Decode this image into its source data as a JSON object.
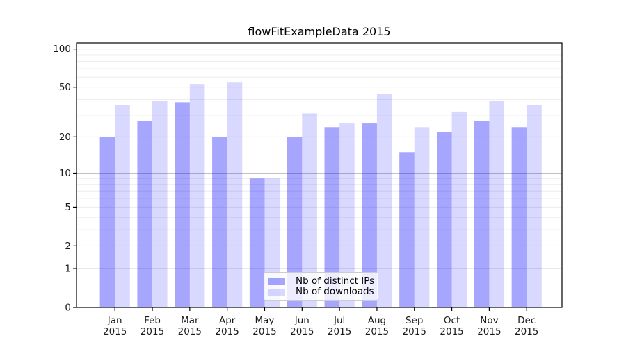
{
  "chart_data": {
    "type": "bar",
    "title": "flowFitExampleData 2015",
    "categories": [
      "Jan",
      "Feb",
      "Mar",
      "Apr",
      "May",
      "Jun",
      "Jul",
      "Aug",
      "Sep",
      "Oct",
      "Nov",
      "Dec"
    ],
    "year_label": "2015",
    "series": [
      {
        "name": "Nb of distinct IPs",
        "color": "rgba(0,0,255,0.35)",
        "color_hex_on_white": "#a6a6ff",
        "values": [
          20,
          27,
          38,
          20,
          9,
          20,
          24,
          26,
          15,
          22,
          27,
          24
        ]
      },
      {
        "name": "Nb of downloads",
        "color": "rgba(0,0,255,0.15)",
        "color_hex_on_white": "#d9d9ff",
        "values": [
          36,
          39,
          53,
          55,
          9,
          31,
          26,
          44,
          24,
          32,
          39,
          36
        ]
      }
    ],
    "yscale": "log10(1+y)",
    "ylim": [
      0,
      111
    ],
    "yticks": [
      100,
      50,
      20,
      10,
      5,
      2,
      1,
      0
    ],
    "grid": {
      "on": true,
      "major_values": [
        1,
        10,
        100
      ],
      "minor_values": [
        2,
        3,
        4,
        5,
        6,
        7,
        8,
        9,
        20,
        30,
        40,
        50,
        60,
        70,
        80,
        90
      ]
    },
    "legend_position": "lower center",
    "colors": {
      "grid_minor": "#ececec",
      "grid_major": "#c2c2c2",
      "axis": "#000000",
      "tick_label": "#1a1a1a",
      "legend_border": "#cccccc",
      "legend_bg": "rgba(255,255,255,0.8)"
    }
  }
}
